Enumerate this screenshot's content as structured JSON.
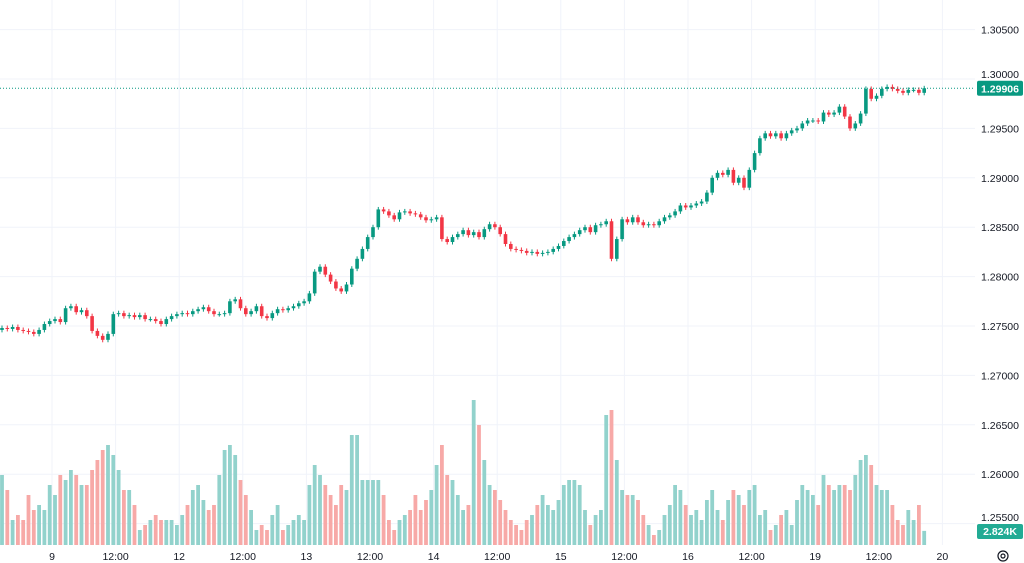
{
  "chart_data": {
    "type": "candlestick",
    "title": "",
    "xlabel": "",
    "ylabel": "",
    "interval": "1 hour",
    "ylim": [
      1.2548,
      1.308
    ],
    "y_ticks": [
      "1.30500",
      "1.30000",
      "1.29500",
      "1.29000",
      "1.28500",
      "1.28000",
      "1.27500",
      "1.27000",
      "1.26500",
      "1.26000",
      "1.25500"
    ],
    "y_tick_values": [
      1.305,
      1.3,
      1.295,
      1.29,
      1.285,
      1.28,
      1.275,
      1.27,
      1.265,
      1.26,
      1.255
    ],
    "x_ticks": [
      {
        "label": "12:00",
        "index": -11
      },
      {
        "label": "9",
        "index": 10
      },
      {
        "label": "12:00",
        "index": 22
      },
      {
        "label": "12",
        "index": 34
      },
      {
        "label": "12:00",
        "index": 46
      },
      {
        "label": "13",
        "index": 58
      },
      {
        "label": "12:00",
        "index": 70
      },
      {
        "label": "14",
        "index": 82
      },
      {
        "label": "12:00",
        "index": 94
      },
      {
        "label": "15",
        "index": 106
      },
      {
        "label": "12:00",
        "index": 118
      },
      {
        "label": "16",
        "index": 130
      },
      {
        "label": "12:00",
        "index": 142
      },
      {
        "label": "19",
        "index": 154
      },
      {
        "label": "12:00",
        "index": 166
      },
      {
        "label": "20",
        "index": 178
      }
    ],
    "first_open": 1.2746,
    "close": [
      1.2748,
      1.2747,
      1.2749,
      1.2746,
      1.2745,
      1.2744,
      1.2742,
      1.2746,
      1.2752,
      1.2755,
      1.2757,
      1.2754,
      1.2768,
      1.277,
      1.2764,
      1.2766,
      1.276,
      1.2745,
      1.274,
      1.2736,
      1.2742,
      1.2762,
      1.2763,
      1.276,
      1.2761,
      1.2759,
      1.2761,
      1.2757,
      1.2757,
      1.2755,
      1.2752,
      1.2757,
      1.276,
      1.2762,
      1.2763,
      1.2762,
      1.2765,
      1.2767,
      1.2769,
      1.2765,
      1.2762,
      1.2762,
      1.2763,
      1.2775,
      1.2777,
      1.2768,
      1.2762,
      1.2765,
      1.277,
      1.276,
      1.2758,
      1.2763,
      1.2767,
      1.2766,
      1.2768,
      1.277,
      1.2773,
      1.2775,
      1.2783,
      1.2805,
      1.281,
      1.2802,
      1.2795,
      1.2788,
      1.2785,
      1.2792,
      1.2808,
      1.2818,
      1.2828,
      1.284,
      1.285,
      1.2868,
      1.2866,
      1.2862,
      1.2858,
      1.2865,
      1.2866,
      1.2864,
      1.2863,
      1.286,
      1.2857,
      1.2858,
      1.286,
      1.2838,
      1.2835,
      1.284,
      1.2843,
      1.2847,
      1.2842,
      1.2845,
      1.284,
      1.2848,
      1.2853,
      1.285,
      1.2843,
      1.2833,
      1.2828,
      1.2827,
      1.2826,
      1.2824,
      1.2825,
      1.2823,
      1.2824,
      1.2825,
      1.2828,
      1.2831,
      1.2836,
      1.284,
      1.2843,
      1.2847,
      1.285,
      1.2845,
      1.2852,
      1.2853,
      1.2856,
      1.2818,
      1.2838,
      1.2858,
      1.2855,
      1.286,
      1.2855,
      1.2852,
      1.2853,
      1.2852,
      1.2856,
      1.286,
      1.2862,
      1.2866,
      1.2872,
      1.287,
      1.2872,
      1.2874,
      1.2876,
      1.2885,
      1.29,
      1.2905,
      1.2903,
      1.2908,
      1.2895,
      1.29,
      1.289,
      1.2908,
      1.2925,
      1.294,
      1.2945,
      1.2942,
      1.2945,
      1.294,
      1.2945,
      1.2948,
      1.295,
      1.2955,
      1.2958,
      1.2958,
      1.2957,
      1.2966,
      1.2964,
      1.2966,
      1.2972,
      1.2962,
      1.295,
      1.2955,
      1.2965,
      1.299,
      1.298,
      1.2983,
      1.299,
      1.2992,
      1.299,
      1.2988,
      1.2986,
      1.2989,
      1.2989,
      1.2986,
      1.29906
    ],
    "volume_k": [
      14,
      11,
      5,
      6,
      5,
      10,
      7,
      8,
      7,
      12,
      10,
      14,
      13,
      15,
      14,
      12,
      12,
      15,
      17,
      19,
      20,
      18,
      15,
      11,
      11,
      8,
      3,
      4,
      5,
      6,
      5,
      5,
      5,
      4,
      6,
      8,
      11,
      12,
      9,
      7,
      8,
      14,
      19,
      20,
      18,
      13,
      10,
      7,
      3,
      4,
      3,
      6,
      8,
      3,
      4,
      5,
      6,
      5,
      12,
      16,
      14,
      12,
      10,
      8,
      12,
      11,
      22,
      22,
      13,
      13,
      13,
      13,
      10,
      5,
      3,
      5,
      6,
      7,
      10,
      7,
      9,
      11,
      16,
      20,
      14,
      13,
      10,
      7,
      8,
      29,
      24,
      17,
      12,
      11,
      9,
      7,
      5,
      4,
      3,
      5,
      6,
      8,
      10,
      8,
      7,
      9,
      12,
      13,
      13,
      12,
      7,
      4,
      6,
      7,
      26,
      27,
      17,
      11,
      10,
      10,
      9,
      6,
      4,
      2,
      3,
      6,
      8,
      12,
      11,
      8,
      6,
      7,
      5,
      9,
      11,
      7,
      5,
      9,
      11,
      10,
      8,
      11,
      12,
      6,
      7,
      3,
      4,
      6,
      7,
      4,
      9,
      12,
      11,
      10,
      8,
      14,
      12,
      11,
      12,
      12,
      11,
      14,
      17,
      18,
      16,
      12,
      11,
      11,
      8,
      5,
      4,
      7,
      5,
      8,
      2.824
    ],
    "last_price_label": "1.29906",
    "last_volume_label": "2.824K",
    "colors": {
      "up": "#089981",
      "down": "#f23645",
      "up_volume": "#92d2cc",
      "down_volume": "#f7a9a7",
      "grid": "#f0f3fa",
      "text": "#131722"
    }
  },
  "icons": {
    "settings": "gear-icon"
  }
}
